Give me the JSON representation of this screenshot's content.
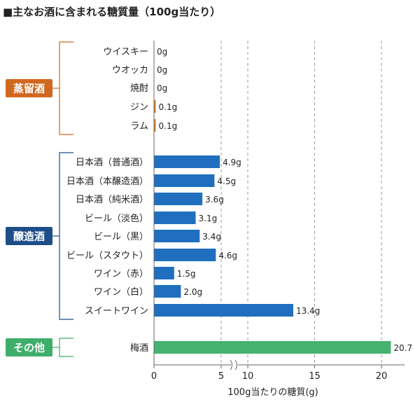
{
  "chart_data": {
    "type": "bar",
    "orientation": "horizontal",
    "title": "■主なお酒に含まれる糖質量（100g当たり）",
    "xlabel": "100g当たりの糖質(g)",
    "ticks": [
      "0",
      "5",
      "10",
      "15",
      "20",
      "25"
    ],
    "axis_break": "between 5 and 10",
    "grid": "dashed vertical",
    "groups": [
      {
        "name": "蒸留酒",
        "color": "#d0691f",
        "bar_color": "#e07a1e",
        "items": [
          {
            "category": "ウイスキー",
            "value": 0,
            "label": "0g"
          },
          {
            "category": "ウオッカ",
            "value": 0,
            "label": "0g"
          },
          {
            "category": "焼酎",
            "value": 0,
            "label": "0g"
          },
          {
            "category": "ジン",
            "value": 0.1,
            "label": "0.1g"
          },
          {
            "category": "ラム",
            "value": 0.1,
            "label": "0.1g"
          }
        ]
      },
      {
        "name": "醸造酒",
        "color": "#1d4e89",
        "bar_color": "#1f6fbe",
        "items": [
          {
            "category": "日本酒（普通酒）",
            "value": 4.9,
            "label": "4.9g"
          },
          {
            "category": "日本酒（本醸造酒）",
            "value": 4.5,
            "label": "4.5g"
          },
          {
            "category": "日本酒（純米酒）",
            "value": 3.6,
            "label": "3.6g"
          },
          {
            "category": "ビール（淡色）",
            "value": 3.1,
            "label": "3.1g"
          },
          {
            "category": "ビール（黒）",
            "value": 3.4,
            "label": "3.4g"
          },
          {
            "category": "ビール（スタウト）",
            "value": 4.6,
            "label": "4.6g"
          },
          {
            "category": "ワイン（赤）",
            "value": 1.5,
            "label": "1.5g"
          },
          {
            "category": "ワイン（白）",
            "value": 2.0,
            "label": "2.0g"
          },
          {
            "category": "スイートワイン",
            "value": 13.4,
            "label": "13.4g"
          }
        ]
      },
      {
        "name": "その他",
        "color": "#3fae6a",
        "bar_color": "#46b26f",
        "items": [
          {
            "category": "梅酒",
            "value": 20.7,
            "label": "20.7g"
          }
        ]
      }
    ]
  }
}
